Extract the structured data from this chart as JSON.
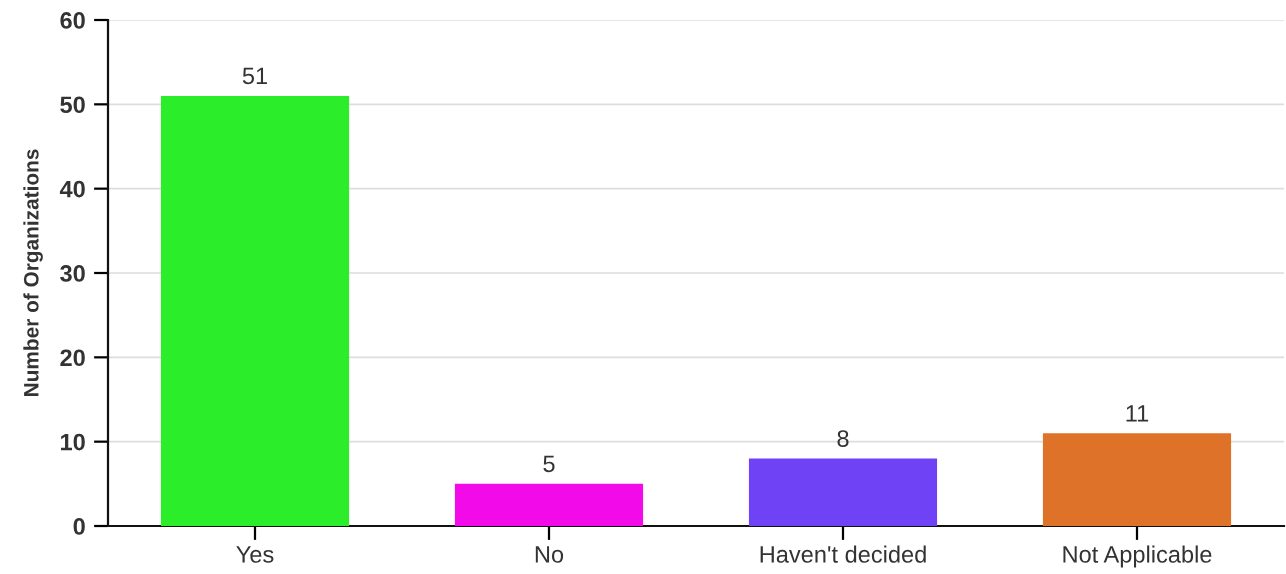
{
  "chart_data": {
    "type": "bar",
    "ylabel": "Number of Organizations",
    "categories": [
      "Yes",
      "No",
      "Haven't decided",
      "Not Applicable"
    ],
    "values": [
      51,
      5,
      8,
      11
    ],
    "colors": [
      "#2bed2a",
      "#f20ae8",
      "#6f42f5",
      "#de7229"
    ],
    "ylim": [
      0,
      60
    ],
    "yticks": [
      0,
      10,
      20,
      30,
      40,
      50,
      60
    ],
    "grid": "y",
    "data_labels": true,
    "legend": false
  }
}
